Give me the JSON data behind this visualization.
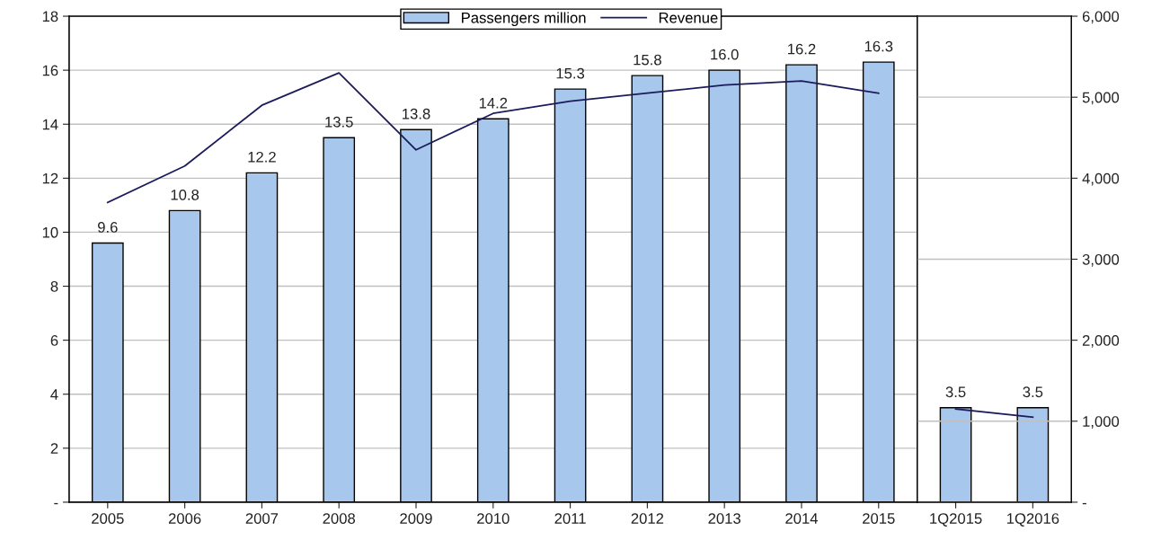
{
  "chart_data": [
    {
      "type": "bar",
      "categories": [
        "2005",
        "2006",
        "2007",
        "2008",
        "2009",
        "2010",
        "2011",
        "2012",
        "2013",
        "2014",
        "2015"
      ],
      "series": [
        {
          "name": "Passengers million",
          "color": "#a7c7ec",
          "values": [
            9.6,
            10.8,
            12.2,
            13.5,
            13.8,
            14.2,
            15.3,
            15.8,
            16.0,
            16.2,
            16.3
          ],
          "value_labels": [
            "9.6",
            "10.8",
            "12.2",
            "13.5",
            "13.8",
            "14.2",
            "15.3",
            "15.8",
            "16.0",
            "16.2",
            "16.3"
          ]
        },
        {
          "name": "Revenue",
          "type": "line",
          "axis": "y2",
          "color": "#1c1c5c",
          "values": [
            3700,
            4150,
            4900,
            5300,
            4350,
            4800,
            4950,
            5050,
            5150,
            5200,
            5050
          ]
        }
      ],
      "ylim": [
        0,
        18
      ],
      "yticks": [
        {
          "value": 0,
          "label": "-"
        },
        2,
        4,
        6,
        8,
        10,
        12,
        14,
        16,
        18
      ],
      "y2lim": [
        0,
        6000
      ],
      "tick_labels": [
        "x",
        "y"
      ],
      "grid": "y",
      "legend": "top",
      "marker": "none",
      "line_style": "solid"
    },
    {
      "type": "bar",
      "categories": [
        "1Q2015",
        "1Q2016"
      ],
      "series": [
        {
          "color": "#a7c7ec",
          "values": [
            3.5,
            3.5
          ],
          "value_labels": [
            "3.5",
            "3.5"
          ]
        },
        {
          "type": "line",
          "axis": "y2",
          "color": "#1c1c5c",
          "values": [
            1150,
            1050
          ]
        }
      ],
      "ylim": [
        0,
        18
      ],
      "y2lim": [
        0,
        6000
      ],
      "y2ticks": [
        {
          "value": 0,
          "label": "-"
        },
        {
          "value": 1000,
          "label": "1,000"
        },
        {
          "value": 2000,
          "label": "2,000"
        },
        {
          "value": 3000,
          "label": "3,000"
        },
        {
          "value": 4000,
          "label": "4,000"
        },
        {
          "value": 5000,
          "label": "5,000"
        },
        {
          "value": 6000,
          "label": "6,000"
        }
      ],
      "tick_labels": [
        "x",
        "y2"
      ],
      "grid": "y",
      "marker": "none",
      "line_style": "solid"
    }
  ]
}
